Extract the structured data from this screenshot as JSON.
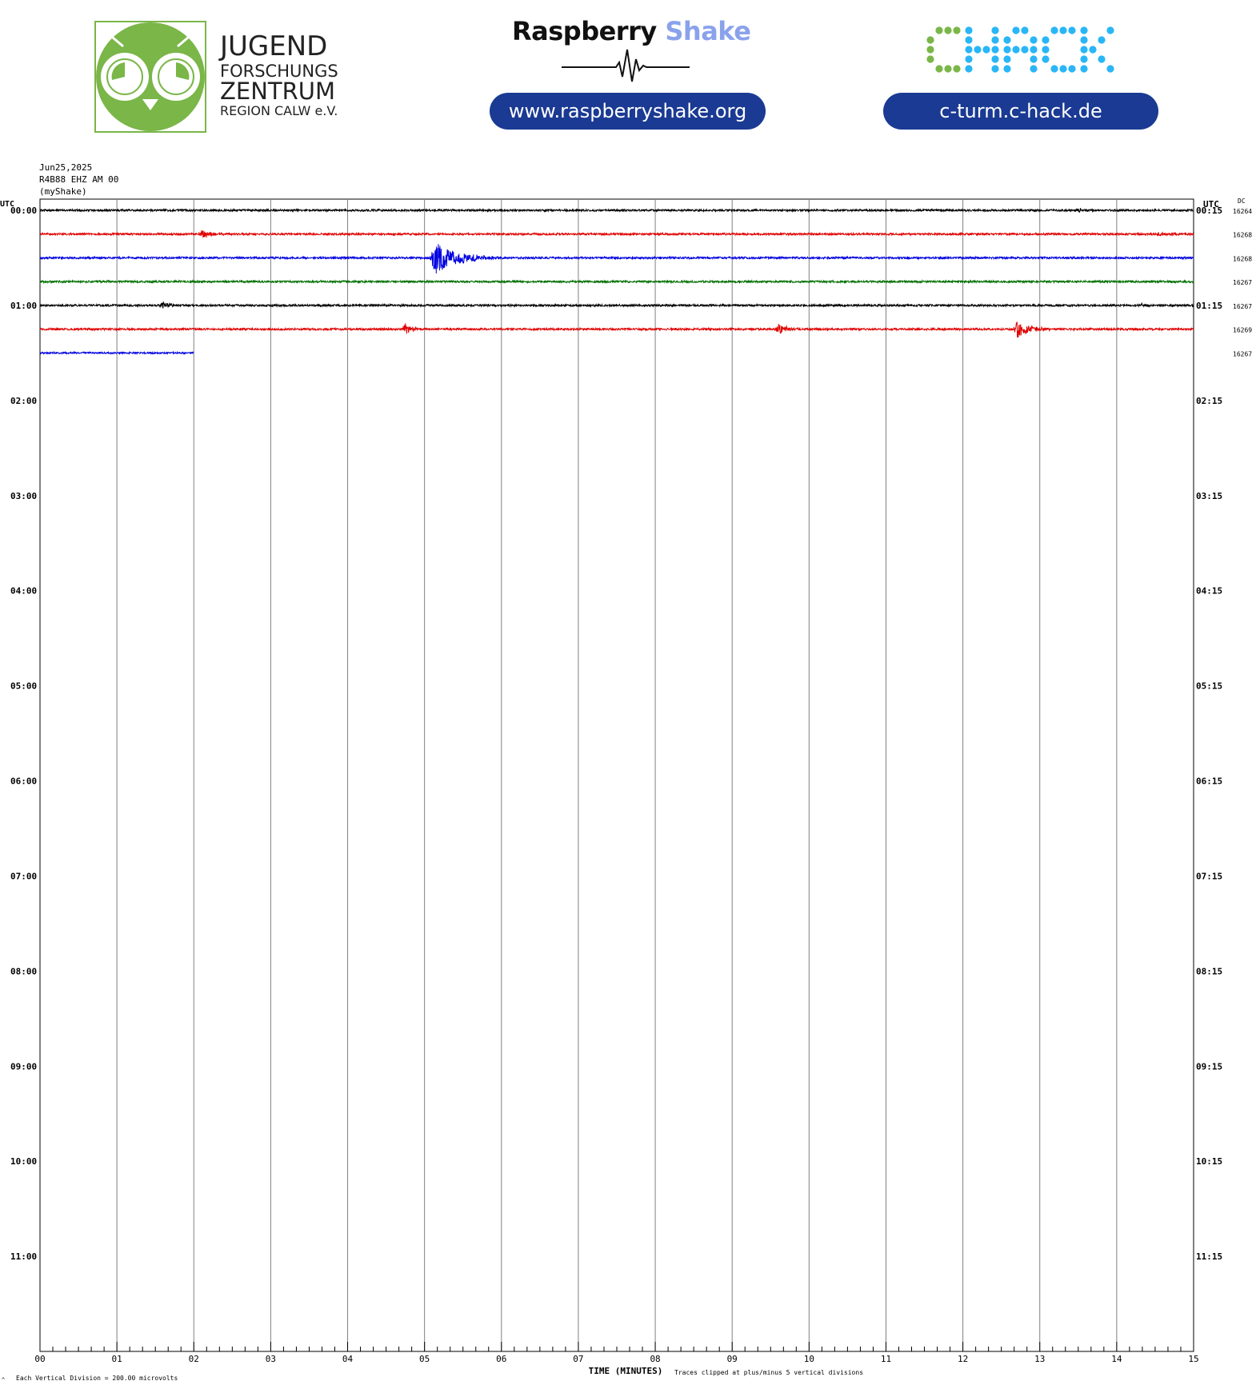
{
  "header": {
    "jfz_logo": {
      "line1": "JUGEND",
      "line2": "FORSCHUNGS",
      "line3": "ZENTRUM",
      "line4": "REGION CALW e.V."
    },
    "raspberry": {
      "word1": "Raspberry",
      "word2": " Shake",
      "url": "www.raspberryshake.org"
    },
    "chack": {
      "logo_text": "CHACK",
      "url": "c-turm.c-hack.de"
    },
    "colors": {
      "jfz_green": "#7ab648",
      "pill_blue": "#1a3a93",
      "chack_green": "#7ab648",
      "chack_blue": "#29b6f6"
    }
  },
  "station": {
    "date": "Jun25,2025",
    "channel": "R4B88 EHZ AM 00",
    "network": "(myShake)"
  },
  "chart_data": {
    "type": "line",
    "title": "",
    "xlabel": "TIME (MINUTES)",
    "left_axis_label": "UTC",
    "right_axis_label": "UTC",
    "dc_label": "DC",
    "x_ticks": [
      "00",
      "01",
      "02",
      "03",
      "04",
      "05",
      "06",
      "07",
      "08",
      "09",
      "10",
      "11",
      "12",
      "13",
      "14",
      "15"
    ],
    "xlim": [
      0,
      15
    ],
    "left_hour_labels": [
      "00:00",
      "01:00",
      "02:00",
      "03:00",
      "04:00",
      "05:00",
      "06:00",
      "07:00",
      "08:00",
      "09:00",
      "10:00",
      "11:00"
    ],
    "right_hour_labels": [
      "00:15",
      "01:15",
      "02:15",
      "03:15",
      "04:15",
      "05:15",
      "06:15",
      "07:15",
      "08:15",
      "09:15",
      "10:15",
      "11:15"
    ],
    "rows_per_hour": 4,
    "total_rows": 48,
    "trace_colors": [
      "#000000",
      "#e00000",
      "#0000e0",
      "#007000"
    ],
    "traces": [
      {
        "row": 0,
        "color": "#000000",
        "dc": "16264",
        "end_minute": 15,
        "noise": 1.2,
        "events": [
          {
            "minute": 13.5,
            "amp": 3,
            "dur": 0.15
          }
        ]
      },
      {
        "row": 1,
        "color": "#e00000",
        "dc": "16268",
        "end_minute": 15,
        "noise": 1.2,
        "events": [
          {
            "minute": 2.1,
            "amp": 6,
            "dur": 0.4
          },
          {
            "minute": 14.5,
            "amp": 2.5,
            "dur": 0.3
          }
        ]
      },
      {
        "row": 2,
        "color": "#0000e0",
        "dc": "16268",
        "end_minute": 15,
        "noise": 1.2,
        "events": [
          {
            "minute": 5.12,
            "amp": 22,
            "dur": 0.9
          }
        ]
      },
      {
        "row": 3,
        "color": "#007000",
        "dc": "16267",
        "end_minute": 15,
        "noise": 1.2,
        "events": []
      },
      {
        "row": 4,
        "color": "#000000",
        "dc": "16267",
        "end_minute": 15,
        "noise": 1.2,
        "events": [
          {
            "minute": 1.6,
            "amp": 5,
            "dur": 0.3
          },
          {
            "minute": 14.3,
            "amp": 2,
            "dur": 0.3
          }
        ]
      },
      {
        "row": 5,
        "color": "#e00000",
        "dc": "16269",
        "end_minute": 15,
        "noise": 1.2,
        "events": [
          {
            "minute": 4.75,
            "amp": 7,
            "dur": 0.3
          },
          {
            "minute": 9.6,
            "amp": 7,
            "dur": 0.35
          },
          {
            "minute": 12.7,
            "amp": 11,
            "dur": 0.5
          }
        ]
      },
      {
        "row": 6,
        "color": "#0000e0",
        "dc": "16267",
        "end_minute": 2,
        "noise": 1.0,
        "events": []
      }
    ],
    "footer_left": "Each Vertical Division =  200.00 microvolts",
    "footer_right": "Traces clipped at plus/minus 5 vertical divisions",
    "footer_mark": "^"
  }
}
